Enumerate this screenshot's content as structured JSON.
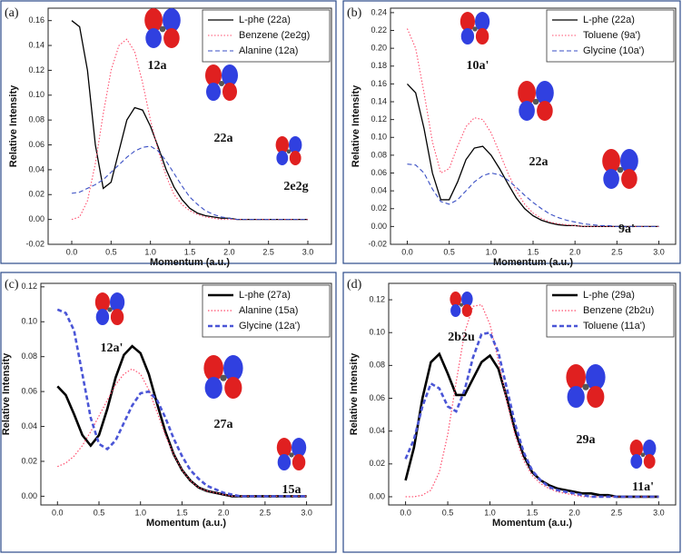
{
  "chart_data": [
    {
      "type": "line",
      "panel_label": "(a)",
      "x_label": "Momentum (a.u.)",
      "y_label": "Relative Intensity",
      "x": [
        0,
        0.1,
        0.2,
        0.3,
        0.4,
        0.5,
        0.6,
        0.7,
        0.8,
        0.9,
        1.0,
        1.1,
        1.2,
        1.3,
        1.4,
        1.5,
        1.6,
        1.7,
        1.8,
        1.9,
        2.0,
        2.1,
        2.2,
        2.3,
        2.4,
        2.5,
        2.6,
        2.7,
        2.8,
        2.9,
        3.0
      ],
      "xlim": [
        -0.3,
        3.3
      ],
      "ylim": [
        -0.02,
        0.17
      ],
      "xticks": [
        {
          "value": 0,
          "label": "0.0"
        },
        {
          "value": 0.5,
          "label": "0.5"
        },
        {
          "value": 1,
          "label": "1.0"
        },
        {
          "value": 1.5,
          "label": "1.5"
        },
        {
          "value": 2,
          "label": "2.0"
        },
        {
          "value": 2.5,
          "label": "2.5"
        },
        {
          "value": 3,
          "label": "3.0"
        }
      ],
      "yticks": [
        -0.02,
        {
          "value": 0,
          "label": "0.00"
        },
        0.02,
        0.04,
        0.06,
        0.08,
        {
          "value": 0.1,
          "label": "0.10"
        },
        0.12,
        0.14,
        0.16
      ],
      "annotations": [
        "12a",
        "22a",
        "2e2g"
      ],
      "series": [
        {
          "name": "L-phe (22a)",
          "color": "#000000",
          "line_style": "solid",
          "line_width": 1.3,
          "values": [
            0.16,
            0.155,
            0.12,
            0.06,
            0.025,
            0.03,
            0.055,
            0.08,
            0.09,
            0.088,
            0.075,
            0.058,
            0.04,
            0.026,
            0.016,
            0.009,
            0.005,
            0.003,
            0.002,
            0.001,
            0.001,
            0,
            0,
            0,
            0,
            0,
            0,
            0,
            0,
            0,
            0
          ]
        },
        {
          "name": "Benzene (2e2g)",
          "color": "#ff4d6d",
          "line_style": "dotted",
          "line_width": 1.1,
          "values": [
            0,
            0.002,
            0.015,
            0.045,
            0.085,
            0.12,
            0.14,
            0.145,
            0.135,
            0.11,
            0.08,
            0.055,
            0.035,
            0.02,
            0.012,
            0.007,
            0.004,
            0.002,
            0.001,
            0,
            0,
            0,
            0,
            0,
            0,
            0,
            0,
            0,
            0,
            0,
            0
          ]
        },
        {
          "name": "Alanine (12a)",
          "color": "#3a4fc4",
          "line_style": "dashed",
          "line_width": 1.1,
          "values": [
            0.021,
            0.022,
            0.025,
            0.028,
            0.032,
            0.038,
            0.044,
            0.05,
            0.055,
            0.058,
            0.059,
            0.055,
            0.047,
            0.037,
            0.027,
            0.018,
            0.012,
            0.007,
            0.004,
            0.002,
            0.001,
            0,
            0,
            0,
            0,
            0,
            0,
            0,
            0,
            0,
            0
          ]
        }
      ]
    },
    {
      "type": "line",
      "panel_label": "(b)",
      "x_label": "Momentum (a.u.)",
      "y_label": "Relative Intensity",
      "x": [
        0,
        0.1,
        0.2,
        0.3,
        0.4,
        0.5,
        0.6,
        0.7,
        0.8,
        0.9,
        1.0,
        1.1,
        1.2,
        1.3,
        1.4,
        1.5,
        1.6,
        1.7,
        1.8,
        1.9,
        2.0,
        2.1,
        2.2,
        2.3,
        2.4,
        2.5,
        2.6,
        2.7,
        2.8,
        2.9,
        3.0
      ],
      "xlim": [
        -0.2,
        3.2
      ],
      "ylim": [
        -0.02,
        0.245
      ],
      "xticks": [
        {
          "value": 0,
          "label": "0.0"
        },
        {
          "value": 0.5,
          "label": "0.5"
        },
        {
          "value": 1,
          "label": "1.0"
        },
        {
          "value": 1.5,
          "label": "1.5"
        },
        {
          "value": 2,
          "label": "2.0"
        },
        {
          "value": 2.5,
          "label": "2.5"
        },
        {
          "value": 3,
          "label": "3.0"
        }
      ],
      "yticks": [
        -0.02,
        {
          "value": 0,
          "label": "0.00"
        },
        0.02,
        0.04,
        0.06,
        0.08,
        {
          "value": 0.1,
          "label": "0.10"
        },
        0.12,
        0.14,
        0.16,
        0.18,
        {
          "value": 0.2,
          "label": "0.20"
        },
        0.22,
        0.24
      ],
      "annotations": [
        "10a'",
        "22a",
        "9a'"
      ],
      "series": [
        {
          "name": "L-phe (22a)",
          "color": "#000000",
          "line_style": "solid",
          "line_width": 1.3,
          "values": [
            0.16,
            0.15,
            0.11,
            0.06,
            0.03,
            0.03,
            0.05,
            0.075,
            0.088,
            0.09,
            0.08,
            0.065,
            0.048,
            0.032,
            0.02,
            0.012,
            0.007,
            0.004,
            0.002,
            0.001,
            0.001,
            0,
            0,
            0,
            0,
            0,
            0,
            0,
            0,
            0,
            0
          ]
        },
        {
          "name": "Toluene (9a')",
          "color": "#ff4d6d",
          "line_style": "dotted",
          "line_width": 1.1,
          "values": [
            0.222,
            0.2,
            0.15,
            0.095,
            0.06,
            0.065,
            0.09,
            0.112,
            0.122,
            0.12,
            0.105,
            0.083,
            0.06,
            0.04,
            0.025,
            0.015,
            0.009,
            0.005,
            0.003,
            0.002,
            0.001,
            0,
            0,
            0,
            0,
            0,
            0,
            0,
            0,
            0,
            0
          ]
        },
        {
          "name": "Glycine (10a')",
          "color": "#3a4fc4",
          "line_style": "dashed",
          "line_width": 1.1,
          "values": [
            0.07,
            0.069,
            0.06,
            0.042,
            0.028,
            0.025,
            0.03,
            0.04,
            0.05,
            0.057,
            0.06,
            0.058,
            0.052,
            0.044,
            0.035,
            0.027,
            0.02,
            0.014,
            0.01,
            0.007,
            0.005,
            0.003,
            0.002,
            0.001,
            0.001,
            0,
            0,
            0,
            0,
            0,
            0
          ]
        }
      ]
    },
    {
      "type": "line",
      "panel_label": "(c)",
      "x_label": "Momentum (a.u.)",
      "y_label": "Relative Intensity",
      "x": [
        0,
        0.1,
        0.2,
        0.3,
        0.4,
        0.5,
        0.6,
        0.7,
        0.8,
        0.9,
        1.0,
        1.1,
        1.2,
        1.3,
        1.4,
        1.5,
        1.6,
        1.7,
        1.8,
        1.9,
        2.0,
        2.1,
        2.2,
        2.3,
        2.4,
        2.5,
        2.6,
        2.7,
        2.8,
        2.9,
        3.0
      ],
      "xlim": [
        -0.2,
        3.3
      ],
      "ylim": [
        -0.005,
        0.122
      ],
      "xticks": [
        {
          "value": 0,
          "label": "0.0"
        },
        {
          "value": 0.5,
          "label": "0.5"
        },
        {
          "value": 1,
          "label": "1.0"
        },
        {
          "value": 1.5,
          "label": "1.5"
        },
        {
          "value": 2,
          "label": "2.0"
        },
        {
          "value": 2.5,
          "label": "2.5"
        },
        {
          "value": 3,
          "label": "3.0"
        }
      ],
      "yticks": [
        {
          "value": 0,
          "label": "0.00"
        },
        0.02,
        0.04,
        0.06,
        0.08,
        {
          "value": 0.1,
          "label": "0.10"
        },
        0.12
      ],
      "annotations": [
        "12a'",
        "27a",
        "15a"
      ],
      "series": [
        {
          "name": "L-phe (27a)",
          "color": "#000000",
          "line_style": "solid",
          "line_width": 2.6,
          "values": [
            0.063,
            0.058,
            0.047,
            0.035,
            0.029,
            0.035,
            0.05,
            0.068,
            0.081,
            0.086,
            0.082,
            0.07,
            0.053,
            0.037,
            0.024,
            0.015,
            0.009,
            0.005,
            0.003,
            0.002,
            0.001,
            0,
            0,
            0,
            0,
            0,
            0,
            0,
            0,
            0,
            0
          ]
        },
        {
          "name": "Alanine (15a)",
          "color": "#ff4d6d",
          "line_style": "dotted",
          "line_width": 1.2,
          "values": [
            0.017,
            0.019,
            0.023,
            0.029,
            0.037,
            0.046,
            0.055,
            0.064,
            0.07,
            0.073,
            0.07,
            0.061,
            0.048,
            0.035,
            0.024,
            0.015,
            0.009,
            0.005,
            0.003,
            0.002,
            0.001,
            0,
            0,
            0,
            0,
            0,
            0,
            0,
            0,
            0,
            0
          ]
        },
        {
          "name": "Glycine (12a')",
          "color": "#4a55d6",
          "line_style": "dashed",
          "line_width": 2.6,
          "values": [
            0.107,
            0.105,
            0.095,
            0.07,
            0.045,
            0.03,
            0.027,
            0.032,
            0.042,
            0.052,
            0.059,
            0.06,
            0.055,
            0.045,
            0.033,
            0.023,
            0.015,
            0.01,
            0.006,
            0.004,
            0.002,
            0.001,
            0,
            0,
            0,
            0,
            0,
            0,
            0,
            0,
            0
          ]
        }
      ]
    },
    {
      "type": "line",
      "panel_label": "(d)",
      "x_label": "Momentum (a.u.)",
      "y_label": "Relative Intensity",
      "x": [
        0,
        0.1,
        0.2,
        0.3,
        0.4,
        0.5,
        0.6,
        0.7,
        0.8,
        0.9,
        1.0,
        1.1,
        1.2,
        1.3,
        1.4,
        1.5,
        1.6,
        1.7,
        1.8,
        1.9,
        2.0,
        2.1,
        2.2,
        2.3,
        2.4,
        2.5,
        2.6,
        2.7,
        2.8,
        2.9,
        3.0
      ],
      "xlim": [
        -0.2,
        3.2
      ],
      "ylim": [
        -0.005,
        0.13
      ],
      "xticks": [
        {
          "value": 0,
          "label": "0.0"
        },
        {
          "value": 0.5,
          "label": "0.5"
        },
        {
          "value": 1,
          "label": "1.0"
        },
        {
          "value": 1.5,
          "label": "1.5"
        },
        {
          "value": 2,
          "label": "2.0"
        },
        {
          "value": 2.5,
          "label": "2.5"
        },
        {
          "value": 3,
          "label": "3.0"
        }
      ],
      "yticks": [
        {
          "value": 0,
          "label": "0.00"
        },
        0.02,
        0.04,
        0.06,
        0.08,
        {
          "value": 0.1,
          "label": "0.10"
        },
        0.12
      ],
      "annotations": [
        "2b2u",
        "29a",
        "11a'"
      ],
      "series": [
        {
          "name": "L-phe (29a)",
          "color": "#000000",
          "line_style": "solid",
          "line_width": 2.6,
          "values": [
            0.01,
            0.03,
            0.06,
            0.082,
            0.087,
            0.075,
            0.062,
            0.062,
            0.072,
            0.082,
            0.086,
            0.078,
            0.06,
            0.04,
            0.025,
            0.015,
            0.01,
            0.007,
            0.005,
            0.004,
            0.003,
            0.002,
            0.002,
            0.001,
            0.001,
            0,
            0,
            0,
            0,
            0,
            0
          ]
        },
        {
          "name": "Benzene (2b2u)",
          "color": "#ff4d6d",
          "line_style": "dotted",
          "line_width": 1.2,
          "values": [
            0,
            0,
            0.001,
            0.004,
            0.015,
            0.038,
            0.07,
            0.1,
            0.116,
            0.117,
            0.105,
            0.083,
            0.058,
            0.037,
            0.022,
            0.013,
            0.008,
            0.005,
            0.003,
            0.002,
            0.001,
            0,
            0,
            0,
            0,
            0,
            0,
            0,
            0,
            0,
            0
          ]
        },
        {
          "name": "Toluene (11a')",
          "color": "#4a55d6",
          "line_style": "dashed",
          "line_width": 2.6,
          "values": [
            0.023,
            0.035,
            0.055,
            0.069,
            0.066,
            0.055,
            0.052,
            0.065,
            0.085,
            0.099,
            0.1,
            0.088,
            0.066,
            0.044,
            0.027,
            0.016,
            0.01,
            0.006,
            0.004,
            0.003,
            0.002,
            0.001,
            0,
            0,
            0,
            0,
            0,
            0,
            0,
            0,
            0
          ]
        }
      ]
    }
  ]
}
